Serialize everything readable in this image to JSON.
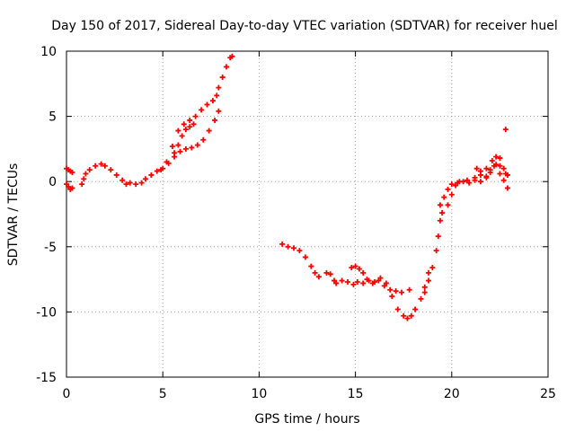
{
  "chart_data": {
    "type": "scatter",
    "title": "Day 150 of 2017, Sidereal Day-to-day VTEC variation (SDTVAR) for receiver huel",
    "xlabel": "GPS time / hours",
    "ylabel": "SDTVAR / TECUs",
    "xlim": [
      0,
      25
    ],
    "ylim": [
      -15,
      10
    ],
    "xticks": [
      0,
      5,
      10,
      15,
      20,
      25
    ],
    "yticks": [
      -15,
      -10,
      -5,
      0,
      5,
      10
    ],
    "grid": true,
    "legend": "none",
    "marker": "+",
    "color": "#ff0000",
    "series": [
      {
        "points": [
          [
            0.0,
            1.0
          ],
          [
            0.1,
            0.9
          ],
          [
            0.2,
            0.8
          ],
          [
            0.3,
            0.7
          ]
        ]
      },
      {
        "points": [
          [
            0.0,
            -0.2
          ],
          [
            0.1,
            -0.4
          ],
          [
            0.2,
            -0.6
          ],
          [
            0.3,
            -0.5
          ]
        ]
      },
      {
        "points": [
          [
            0.8,
            -0.2
          ],
          [
            0.9,
            0.2
          ],
          [
            1.0,
            0.6
          ],
          [
            1.2,
            0.9
          ],
          [
            1.5,
            1.2
          ],
          [
            1.8,
            1.35
          ],
          [
            2.0,
            1.2
          ],
          [
            2.3,
            0.9
          ],
          [
            2.6,
            0.5
          ],
          [
            2.9,
            0.1
          ],
          [
            3.1,
            -0.2
          ],
          [
            3.3,
            -0.1
          ],
          [
            3.6,
            -0.2
          ],
          [
            3.9,
            -0.1
          ],
          [
            4.1,
            0.2
          ],
          [
            4.4,
            0.5
          ],
          [
            4.7,
            0.8
          ],
          [
            5.0,
            1.0
          ],
          [
            5.3,
            1.4
          ],
          [
            5.6,
            1.9
          ],
          [
            5.9,
            2.3
          ],
          [
            6.2,
            2.5
          ],
          [
            6.5,
            2.6
          ],
          [
            6.8,
            2.8
          ],
          [
            7.1,
            3.2
          ],
          [
            7.4,
            3.9
          ],
          [
            7.7,
            4.7
          ],
          [
            7.9,
            5.4
          ]
        ]
      },
      {
        "points": [
          [
            4.9,
            0.9
          ],
          [
            5.2,
            1.5
          ],
          [
            5.5,
            2.7
          ],
          [
            5.8,
            3.9
          ],
          [
            6.1,
            4.4
          ],
          [
            6.4,
            4.7
          ],
          [
            6.7,
            5.0
          ],
          [
            7.0,
            5.5
          ],
          [
            7.3,
            5.9
          ],
          [
            7.6,
            6.2
          ],
          [
            7.8,
            6.6
          ],
          [
            7.9,
            7.2
          ],
          [
            8.1,
            8.0
          ],
          [
            8.3,
            8.8
          ],
          [
            8.5,
            9.5
          ],
          [
            8.6,
            9.6
          ]
        ]
      },
      {
        "points": [
          [
            5.6,
            2.2
          ],
          [
            5.8,
            2.8
          ],
          [
            6.0,
            3.5
          ],
          [
            6.2,
            4.0
          ],
          [
            6.4,
            4.2
          ],
          [
            6.6,
            4.4
          ]
        ]
      },
      {
        "points": [
          [
            11.2,
            -4.8
          ],
          [
            11.5,
            -5.0
          ],
          [
            11.8,
            -5.1
          ],
          [
            12.1,
            -5.3
          ],
          [
            12.4,
            -5.8
          ],
          [
            12.7,
            -6.5
          ],
          [
            12.9,
            -7.0
          ],
          [
            13.1,
            -7.3
          ]
        ]
      },
      {
        "points": [
          [
            13.5,
            -7.0
          ],
          [
            13.7,
            -7.1
          ],
          [
            13.9,
            -7.6
          ],
          [
            14.0,
            -7.8
          ],
          [
            14.3,
            -7.6
          ],
          [
            14.6,
            -7.7
          ],
          [
            14.9,
            -7.9
          ],
          [
            15.1,
            -7.7
          ],
          [
            15.4,
            -7.8
          ],
          [
            15.6,
            -7.5
          ],
          [
            15.9,
            -7.8
          ],
          [
            16.2,
            -7.6
          ],
          [
            16.5,
            -8.0
          ],
          [
            16.8,
            -8.3
          ],
          [
            17.1,
            -8.4
          ],
          [
            17.4,
            -8.5
          ],
          [
            17.8,
            -8.3
          ],
          [
            18.6,
            -8.1
          ],
          [
            18.8,
            -7.6
          ],
          [
            19.0,
            -6.6
          ],
          [
            19.2,
            -5.3
          ],
          [
            19.3,
            -4.2
          ],
          [
            19.4,
            -3.0
          ],
          [
            19.5,
            -2.4
          ],
          [
            19.8,
            -1.8
          ],
          [
            20.0,
            -1.0
          ],
          [
            20.2,
            -0.3
          ],
          [
            20.4,
            0.0
          ],
          [
            20.8,
            0.1
          ],
          [
            21.2,
            0.3
          ],
          [
            21.5,
            0.8
          ],
          [
            21.8,
            1.0
          ],
          [
            22.1,
            1.6
          ],
          [
            22.3,
            1.9
          ],
          [
            22.5,
            1.8
          ],
          [
            22.7,
            1.0
          ],
          [
            22.9,
            0.5
          ]
        ]
      },
      {
        "points": [
          [
            14.8,
            -6.6
          ],
          [
            15.0,
            -6.5
          ],
          [
            15.2,
            -6.7
          ],
          [
            15.4,
            -7.0
          ],
          [
            15.7,
            -7.6
          ],
          [
            16.0,
            -7.7
          ],
          [
            16.3,
            -7.4
          ],
          [
            16.6,
            -7.8
          ],
          [
            16.9,
            -8.8
          ],
          [
            17.2,
            -9.8
          ],
          [
            17.5,
            -10.3
          ],
          [
            17.7,
            -10.5
          ],
          [
            17.9,
            -10.3
          ],
          [
            18.1,
            -9.8
          ],
          [
            18.4,
            -9.0
          ],
          [
            18.6,
            -8.5
          ],
          [
            18.8,
            -7.0
          ]
        ]
      },
      {
        "points": [
          [
            19.4,
            -1.8
          ],
          [
            19.6,
            -1.2
          ],
          [
            19.8,
            -0.6
          ],
          [
            20.0,
            -0.2
          ],
          [
            20.3,
            -0.1
          ],
          [
            20.6,
            0.0
          ],
          [
            20.9,
            -0.1
          ],
          [
            21.2,
            0.1
          ],
          [
            21.5,
            0.0
          ],
          [
            21.8,
            0.3
          ],
          [
            22.0,
            0.7
          ],
          [
            22.2,
            1.2
          ],
          [
            22.3,
            1.3
          ],
          [
            22.5,
            0.6
          ],
          [
            22.7,
            0.1
          ],
          [
            22.9,
            -0.5
          ]
        ]
      },
      {
        "points": [
          [
            21.3,
            1.0
          ],
          [
            21.5,
            0.5
          ],
          [
            21.8,
            0.4
          ],
          [
            22.0,
            0.9
          ],
          [
            22.5,
            1.2
          ],
          [
            22.8,
            0.6
          ]
        ]
      },
      {
        "points": [
          [
            22.8,
            4.0
          ]
        ]
      }
    ]
  }
}
